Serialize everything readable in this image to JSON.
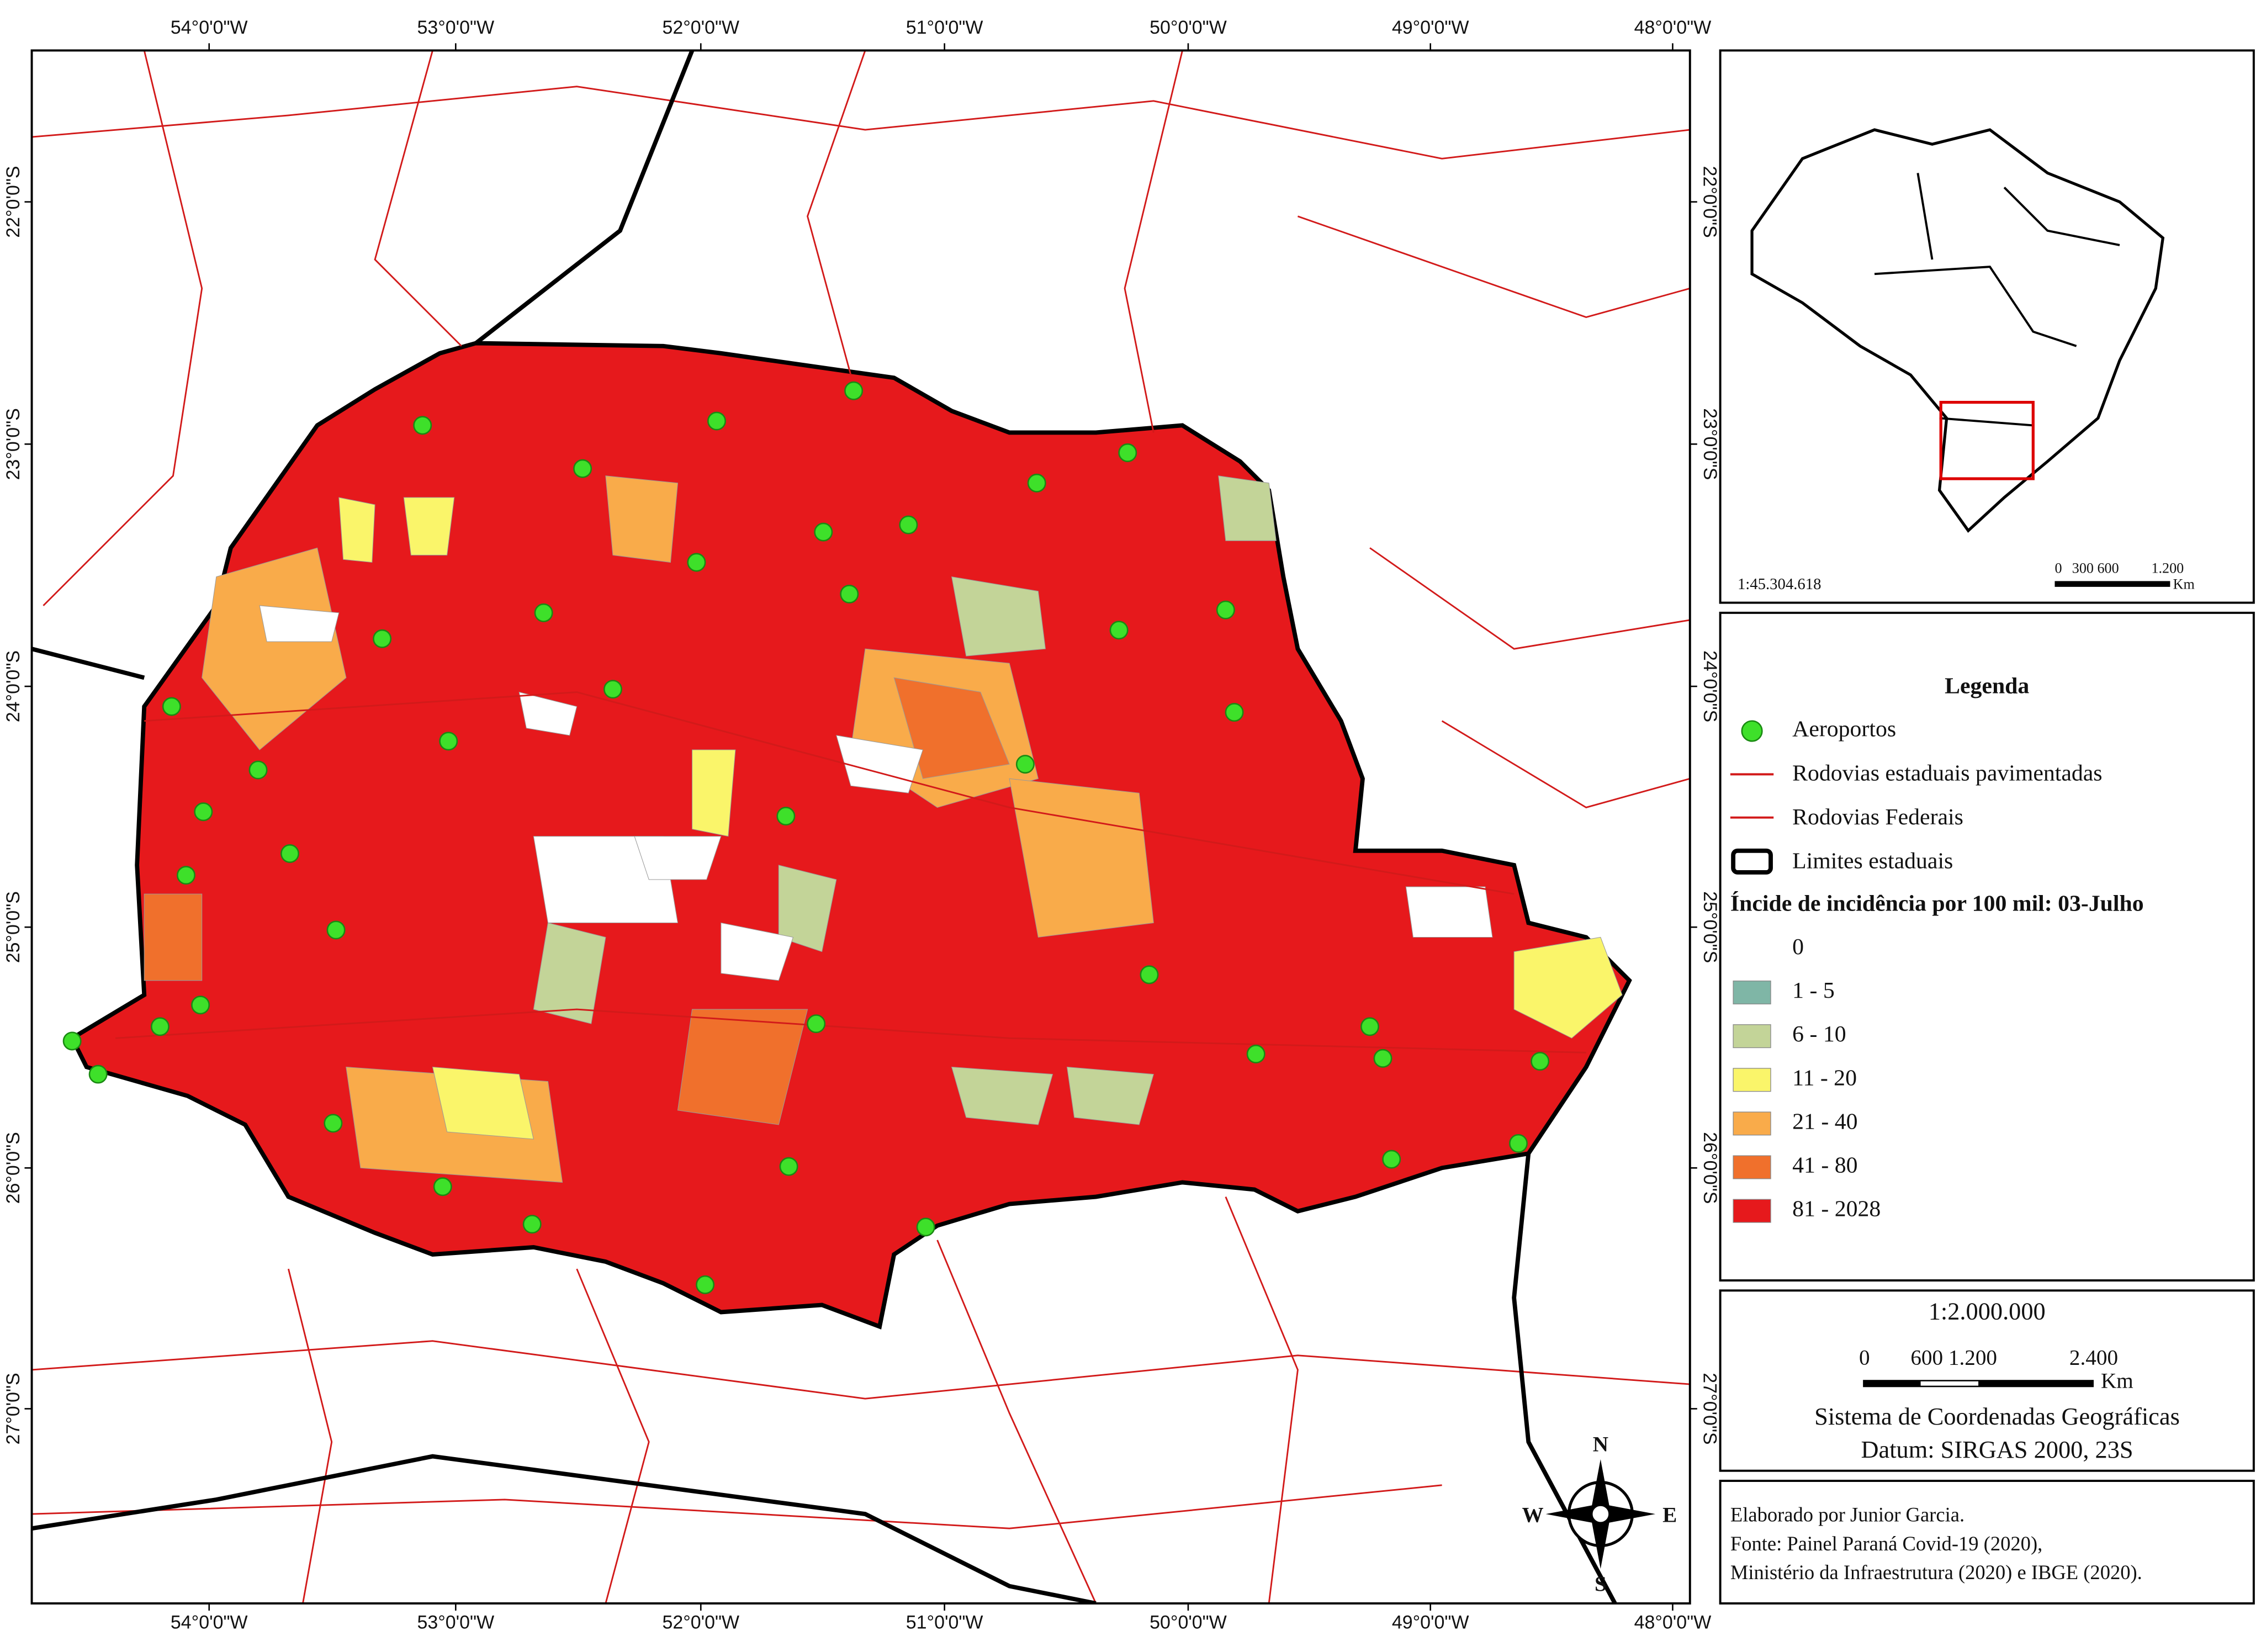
{
  "map": {
    "lon_labels": [
      "54°0'0\"W",
      "53°0'0\"W",
      "52°0'0\"W",
      "51°0'0\"W",
      "50°0'0\"W",
      "49°0'0\"W",
      "48°0'0\"W"
    ],
    "lat_labels": [
      "22°0'0\"S",
      "23°0'0\"S",
      "24°0'0\"S",
      "25°0'0\"S",
      "26°0'0\"S",
      "27°0'0\"S"
    ]
  },
  "inset": {
    "scale": "1:45.304.618",
    "bar_labels": [
      "0",
      "300 600",
      "1.200"
    ],
    "unit": "Km"
  },
  "compass": {
    "n": "N",
    "s": "S",
    "e": "E",
    "w": "W"
  },
  "legend": {
    "title": "Legenda",
    "items": [
      "Aeroportos",
      "Rodovias estaduais pavimentadas",
      "Rodovias Federais",
      "Limites estaduais"
    ],
    "class_title": "Íncide de incidência por 100 mil: 03-Julho",
    "classes": [
      {
        "label": "0",
        "color": "#ffffff"
      },
      {
        "label": "1 - 5",
        "color": "#7fb6a6"
      },
      {
        "label": "6 - 10",
        "color": "#c3d498"
      },
      {
        "label": "11 - 20",
        "color": "#faf56a"
      },
      {
        "label": "21 - 40",
        "color": "#f9ab4a"
      },
      {
        "label": "41 - 80",
        "color": "#f0702c"
      },
      {
        "label": "81 - 2028",
        "color": "#e6191c"
      }
    ]
  },
  "scale": {
    "ratio": "1:2.000.000",
    "bar_labels": [
      "0",
      "600 1.200",
      "2.400"
    ],
    "unit": "Km",
    "crs": "Sistema de Coordenadas Geográficas",
    "datum": "Datum: SIRGAS 2000, 23S"
  },
  "credits": [
    "Elaborado por Junior Garcia.",
    "Fonte: Painel Paraná Covid-19 (2020),",
    "Ministério da Infraestrutura (2020) e IBGE (2020)."
  ]
}
